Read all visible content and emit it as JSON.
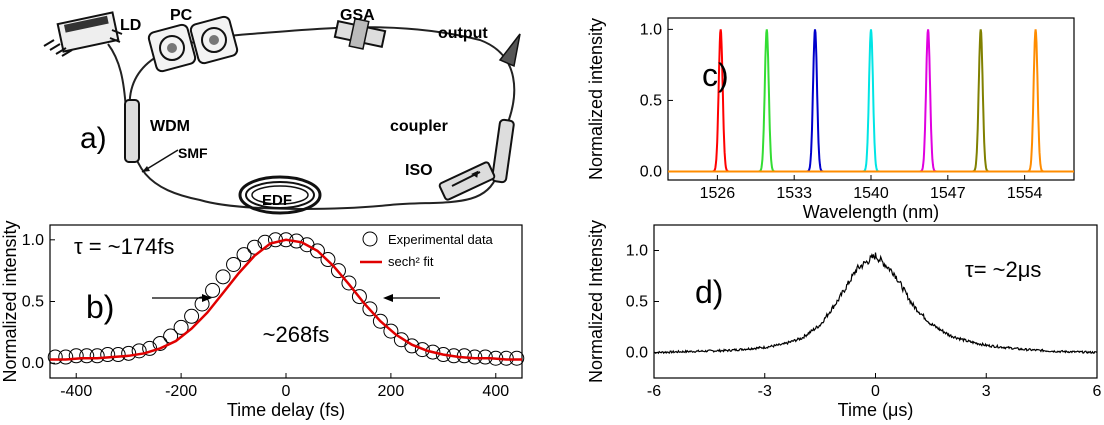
{
  "panel_a": {
    "label": "a)",
    "components": {
      "ld": "LD",
      "pc": "PC",
      "gsa": "GSA",
      "output": "output",
      "wdm": "WDM",
      "coupler": "coupler",
      "smf": "SMF",
      "iso": "ISO",
      "edf": "EDF"
    }
  },
  "chart_data": [
    {
      "id": "b",
      "type": "scatter",
      "panel_label": "b)",
      "xlabel": "Time delay (fs)",
      "ylabel": "Normalized intensity",
      "xlim": [
        -450,
        450
      ],
      "ylim": [
        -0.12,
        1.12
      ],
      "xticks": [
        -400,
        -200,
        0,
        200,
        400
      ],
      "yticks": [
        0.0,
        0.5,
        1.0
      ],
      "xtick_labels": [
        "-400",
        "-200",
        "0",
        "200",
        "400"
      ],
      "ytick_labels": [
        "0.0",
        "0.5",
        "1.0"
      ],
      "annotations": {
        "tau": "τ = ~174fs",
        "fwhm": "~268fs"
      },
      "legend": {
        "position": "top-right",
        "entries": [
          {
            "label": "Experimental data",
            "marker": "open-circle"
          },
          {
            "label": "sech² fit",
            "color": "#e00000"
          }
        ]
      },
      "series": [
        {
          "name": "Experimental data",
          "x": [
            -440,
            -420,
            -400,
            -380,
            -360,
            -340,
            -320,
            -300,
            -280,
            -260,
            -240,
            -220,
            -200,
            -180,
            -160,
            -140,
            -120,
            -100,
            -80,
            -60,
            -40,
            -20,
            0,
            20,
            40,
            60,
            80,
            100,
            120,
            140,
            160,
            180,
            200,
            220,
            240,
            260,
            280,
            300,
            320,
            340,
            360,
            380,
            400,
            420,
            440
          ],
          "y": [
            0.05,
            0.05,
            0.06,
            0.06,
            0.06,
            0.07,
            0.07,
            0.08,
            0.1,
            0.12,
            0.16,
            0.22,
            0.29,
            0.38,
            0.48,
            0.59,
            0.7,
            0.8,
            0.88,
            0.94,
            0.98,
            1.0,
            1.0,
            0.99,
            0.96,
            0.91,
            0.84,
            0.75,
            0.65,
            0.54,
            0.44,
            0.34,
            0.26,
            0.19,
            0.14,
            0.11,
            0.09,
            0.07,
            0.06,
            0.06,
            0.05,
            0.05,
            0.04,
            0.04,
            0.04
          ]
        },
        {
          "name": "sech² fit",
          "color": "#e00000",
          "x": [
            -450,
            -420,
            -390,
            -360,
            -330,
            -300,
            -270,
            -240,
            -210,
            -180,
            -150,
            -120,
            -90,
            -60,
            -30,
            0,
            30,
            60,
            90,
            120,
            150,
            180,
            210,
            240,
            270,
            300,
            330,
            360,
            390,
            420,
            450
          ],
          "y": [
            0.03,
            0.03,
            0.04,
            0.04,
            0.05,
            0.06,
            0.08,
            0.12,
            0.18,
            0.28,
            0.41,
            0.57,
            0.73,
            0.87,
            0.97,
            1.0,
            0.98,
            0.91,
            0.79,
            0.64,
            0.48,
            0.34,
            0.23,
            0.15,
            0.1,
            0.07,
            0.05,
            0.04,
            0.04,
            0.03,
            0.03
          ]
        }
      ]
    },
    {
      "id": "c",
      "type": "line",
      "panel_label": "c)",
      "xlabel": "Wavelength (nm)",
      "ylabel": "Normalized intensity",
      "xlim": [
        1521.5,
        1558.5
      ],
      "ylim": [
        -0.06,
        1.08
      ],
      "xticks": [
        1526,
        1533,
        1540,
        1547,
        1554
      ],
      "yticks": [
        0.0,
        0.5,
        1.0
      ],
      "xtick_labels": [
        "1526",
        "1533",
        "1540",
        "1547",
        "1554"
      ],
      "ytick_labels": [
        "0.0",
        "0.5",
        "1.0"
      ],
      "peaks": [
        {
          "center": 1526.3,
          "color": "#ff0000"
        },
        {
          "center": 1530.5,
          "color": "#33dd33"
        },
        {
          "center": 1534.9,
          "color": "#0000cc"
        },
        {
          "center": 1540.0,
          "color": "#00e5e5"
        },
        {
          "center": 1545.2,
          "color": "#e000e0"
        },
        {
          "center": 1550.0,
          "color": "#808000"
        },
        {
          "center": 1555.0,
          "color": "#ff8c00"
        }
      ],
      "peak_value": 1.0,
      "baseline": 0.0
    },
    {
      "id": "d",
      "type": "line",
      "panel_label": "d)",
      "xlabel": "Time (μs)",
      "ylabel": "Normalized Intensity",
      "xlim": [
        -6,
        6
      ],
      "ylim": [
        -0.25,
        1.25
      ],
      "xticks": [
        -6,
        -3,
        0,
        3,
        6
      ],
      "yticks": [
        0.0,
        0.5,
        1.0
      ],
      "xtick_labels": [
        "-6",
        "-3",
        "0",
        "3",
        "6"
      ],
      "ytick_labels": [
        "0.0",
        "0.5",
        "1.0"
      ],
      "annotations": {
        "tau": "τ= ~2μs"
      },
      "series": [
        {
          "color": "#000000",
          "x": [
            -6,
            -5,
            -4,
            -3,
            -2.5,
            -2,
            -1.5,
            -1,
            -0.5,
            0,
            0.5,
            1,
            1.5,
            2,
            2.5,
            3,
            4,
            5,
            6
          ],
          "y": [
            0.0,
            0.01,
            0.02,
            0.05,
            0.08,
            0.14,
            0.27,
            0.52,
            0.82,
            0.95,
            0.78,
            0.47,
            0.28,
            0.17,
            0.11,
            0.07,
            0.03,
            0.01,
            0.0
          ]
        }
      ]
    }
  ]
}
